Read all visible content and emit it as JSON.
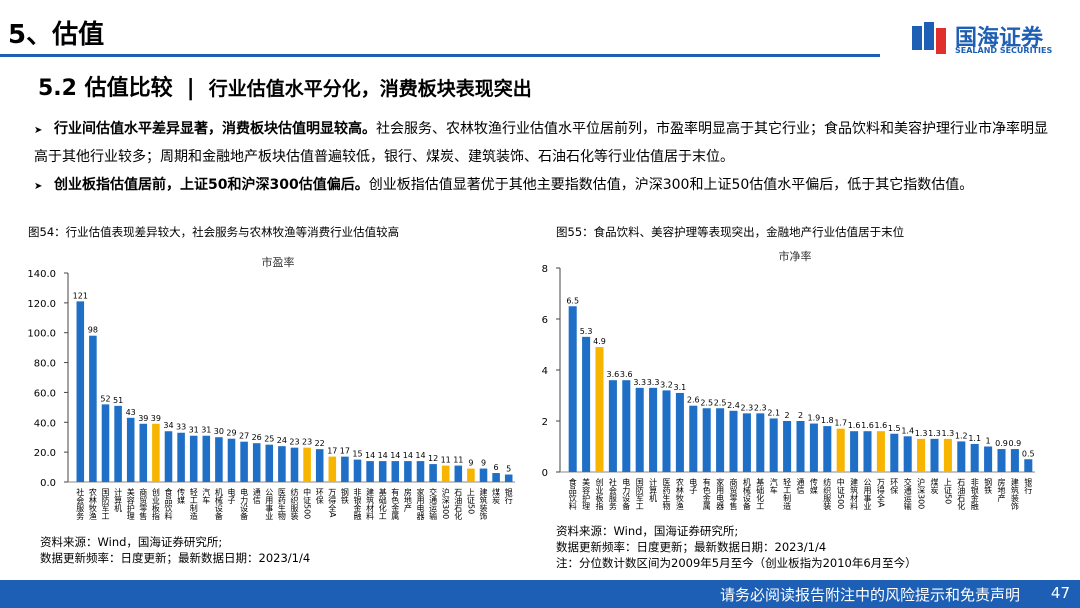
{
  "header": {
    "section": "5、估值",
    "logo_cn": "国海证券",
    "logo_en": "SEALAND SECURITIES"
  },
  "title": {
    "number": "5.2 估值比较",
    "separator": "|",
    "text": "行业估值水平分化，消费板块表现突出"
  },
  "bullets": [
    {
      "bold": "行业间估值水平差异显著，消费板块估值明显较高。",
      "text": "社会服务、农林牧渔行业估值水平位居前列，市盈率明显高于其它行业；食品饮料和美容护理行业市净率明显高于其他行业较多；周期和金融地产板块估值普遍较低，银行、煤炭、建筑装饰、石油石化等行业估值居于末位。"
    },
    {
      "bold": "创业板指估值居前，上证50和沪深300估值偏后。",
      "text": "创业板指估值显著优于其他主要指数估值，沪深300和上证50估值水平偏后，低于其它指数估值。"
    }
  ],
  "chart_data": [
    {
      "type": "bar",
      "caption": "图54：行业估值表现差异较大，社会服务与农林牧渔等消费行业估值较高",
      "title": "市盈率",
      "categories": [
        "社会服务",
        "农林牧渔",
        "国防军工",
        "计算机",
        "美容护理",
        "商贸零售",
        "创业板指",
        "食品饮料",
        "传媒",
        "轻工制造",
        "汽车",
        "机械设备",
        "电子",
        "电力设备",
        "通信",
        "公用事业",
        "医药生物",
        "纺织服装",
        "中证500",
        "环保",
        "万得全A",
        "钢铁",
        "非银金融",
        "建筑材料",
        "基础化工",
        "有色金属",
        "房地产",
        "家用电器",
        "交通运输",
        "沪深300",
        "石油石化",
        "上证50",
        "建筑装饰",
        "煤炭",
        "银行"
      ],
      "values": [
        121,
        98,
        52,
        51,
        43,
        39,
        39,
        34,
        33,
        31,
        31,
        30,
        29,
        27,
        26,
        25,
        24,
        23,
        23,
        22,
        17,
        17,
        15,
        14,
        14,
        14,
        14,
        14,
        12,
        11,
        11,
        9,
        9,
        6,
        5
      ],
      "colors": [
        "#1f6fc6",
        "#1f6fc6",
        "#1f6fc6",
        "#1f6fc6",
        "#1f6fc6",
        "#1f6fc6",
        "#f7b500",
        "#1f6fc6",
        "#1f6fc6",
        "#1f6fc6",
        "#1f6fc6",
        "#1f6fc6",
        "#1f6fc6",
        "#1f6fc6",
        "#1f6fc6",
        "#1f6fc6",
        "#1f6fc6",
        "#1f6fc6",
        "#f7b500",
        "#1f6fc6",
        "#f7b500",
        "#1f6fc6",
        "#1f6fc6",
        "#1f6fc6",
        "#1f6fc6",
        "#1f6fc6",
        "#1f6fc6",
        "#1f6fc6",
        "#1f6fc6",
        "#f7b500",
        "#1f6fc6",
        "#f7b500",
        "#1f6fc6",
        "#1f6fc6",
        "#1f6fc6"
      ],
      "ylim": [
        0,
        140
      ],
      "yticks": [
        {
          "value": 0,
          "label": "0.0"
        },
        {
          "value": 20,
          "label": "20.0"
        },
        {
          "value": 40,
          "label": "40.0"
        },
        {
          "value": 60,
          "label": "60.0"
        },
        {
          "value": 80,
          "label": "80.0"
        },
        {
          "value": 100,
          "label": "100.0"
        },
        {
          "value": 120,
          "label": "120.0"
        },
        {
          "value": 140,
          "label": "140.0"
        }
      ],
      "notes": [
        "资料来源：Wind，国海证券研究所;",
        "数据更新频率：日度更新；最新数据日期：2023/1/4"
      ]
    },
    {
      "type": "bar",
      "caption": "图55：食品饮料、美容护理等表现突出，金融地产行业估值居于末位",
      "title": "市净率",
      "categories": [
        "食品饮料",
        "美容护理",
        "创业板指",
        "社会服务",
        "电力设备",
        "国防军工",
        "计算机",
        "医药生物",
        "农林牧渔",
        "电子",
        "有色金属",
        "家用电器",
        "商贸零售",
        "机械设备",
        "基础化工",
        "汽车",
        "轻工制造",
        "通信",
        "传媒",
        "纺织服装",
        "中证500",
        "建筑材料",
        "公用事业",
        "万得全A",
        "环保",
        "交通运输",
        "沪深300",
        "煤炭",
        "上证50",
        "石油石化",
        "非银金融",
        "钢铁",
        "房地产",
        "建筑装饰",
        "银行"
      ],
      "values": [
        6.5,
        5.3,
        4.9,
        3.6,
        3.6,
        3.3,
        3.3,
        3.2,
        3.1,
        2.6,
        2.5,
        2.5,
        2.4,
        2.3,
        2.3,
        2.1,
        2.0,
        2.0,
        1.9,
        1.8,
        1.7,
        1.6,
        1.6,
        1.6,
        1.5,
        1.4,
        1.3,
        1.3,
        1.3,
        1.2,
        1.1,
        1.0,
        0.9,
        0.9,
        0.5
      ],
      "colors": [
        "#1f6fc6",
        "#1f6fc6",
        "#f7b500",
        "#1f6fc6",
        "#1f6fc6",
        "#1f6fc6",
        "#1f6fc6",
        "#1f6fc6",
        "#1f6fc6",
        "#1f6fc6",
        "#1f6fc6",
        "#1f6fc6",
        "#1f6fc6",
        "#1f6fc6",
        "#1f6fc6",
        "#1f6fc6",
        "#1f6fc6",
        "#1f6fc6",
        "#1f6fc6",
        "#1f6fc6",
        "#f7b500",
        "#1f6fc6",
        "#1f6fc6",
        "#f7b500",
        "#1f6fc6",
        "#1f6fc6",
        "#f7b500",
        "#1f6fc6",
        "#f7b500",
        "#1f6fc6",
        "#1f6fc6",
        "#1f6fc6",
        "#1f6fc6",
        "#1f6fc6",
        "#1f6fc6"
      ],
      "ylim": [
        0,
        8
      ],
      "yticks": [
        0,
        2,
        4,
        6,
        8
      ],
      "notes": [
        "资料来源：Wind，国海证券研究所;",
        "数据更新频率：日度更新；最新数据日期：2023/1/4",
        "注：分位数计数区间为2009年5月至今（创业板指为2010年6月至今）"
      ]
    }
  ],
  "footer": {
    "disclaimer": "请务必阅读报告附注中的风险提示和免责声明",
    "page": "47"
  }
}
